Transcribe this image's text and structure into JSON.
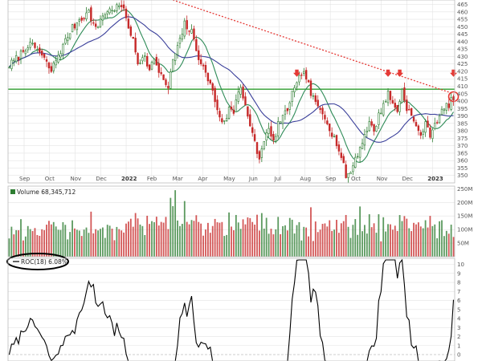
{
  "chart_data": [
    {
      "type": "candlestick",
      "panel": "price",
      "x_labels": [
        "Sep",
        "Oct",
        "Nov",
        "Dec",
        "2022",
        "Feb",
        "Mar",
        "Apr",
        "May",
        "Jun",
        "Jul",
        "Aug",
        "Sep",
        "Oct",
        "Nov",
        "Dec",
        "2023"
      ],
      "y_ticks": [
        350,
        355,
        360,
        365,
        370,
        375,
        380,
        385,
        390,
        395,
        400,
        405,
        410,
        415,
        420,
        425,
        430,
        435,
        440,
        445,
        450,
        455,
        460,
        465
      ],
      "ylim": [
        345,
        468
      ],
      "close_path": [
        [
          0,
          424
        ],
        [
          4,
          430
        ],
        [
          8,
          438
        ],
        [
          12,
          435
        ],
        [
          15,
          428
        ],
        [
          18,
          420
        ],
        [
          20,
          428
        ],
        [
          23,
          437
        ],
        [
          26,
          447
        ],
        [
          30,
          455
        ],
        [
          34,
          460
        ],
        [
          37,
          448
        ],
        [
          40,
          458
        ],
        [
          44,
          462
        ],
        [
          48,
          464
        ],
        [
          50,
          456
        ],
        [
          53,
          440
        ],
        [
          55,
          425
        ],
        [
          58,
          432
        ],
        [
          60,
          420
        ],
        [
          62,
          430
        ],
        [
          64,
          418
        ],
        [
          66,
          415
        ],
        [
          68,
          408
        ],
        [
          70,
          428
        ],
        [
          73,
          440
        ],
        [
          75,
          452
        ],
        [
          78,
          446
        ],
        [
          81,
          430
        ],
        [
          84,
          418
        ],
        [
          86,
          412
        ],
        [
          88,
          400
        ],
        [
          90,
          390
        ],
        [
          92,
          385
        ],
        [
          94,
          395
        ],
        [
          96,
          392
        ],
        [
          97,
          402
        ],
        [
          99,
          410
        ],
        [
          101,
          398
        ],
        [
          103,
          382
        ],
        [
          105,
          372
        ],
        [
          107,
          360
        ],
        [
          109,
          375
        ],
        [
          111,
          380
        ],
        [
          113,
          372
        ],
        [
          115,
          385
        ],
        [
          117,
          388
        ],
        [
          119,
          395
        ],
        [
          121,
          405
        ],
        [
          123,
          410
        ],
        [
          125,
          420
        ],
        [
          127,
          416
        ],
        [
          129,
          405
        ],
        [
          131,
          398
        ],
        [
          134,
          392
        ],
        [
          136,
          387
        ],
        [
          138,
          378
        ],
        [
          140,
          372
        ],
        [
          142,
          362
        ],
        [
          144,
          350
        ],
        [
          146,
          352
        ],
        [
          148,
          362
        ],
        [
          150,
          368
        ],
        [
          152,
          378
        ],
        [
          154,
          385
        ],
        [
          156,
          380
        ],
        [
          158,
          390
        ],
        [
          160,
          398
        ],
        [
          162,
          405
        ],
        [
          164,
          398
        ],
        [
          166,
          394
        ],
        [
          168,
          407
        ],
        [
          170,
          396
        ],
        [
          172,
          390
        ],
        [
          174,
          382
        ],
        [
          176,
          378
        ],
        [
          178,
          384
        ],
        [
          180,
          378
        ],
        [
          182,
          385
        ],
        [
          184,
          390
        ],
        [
          186,
          395
        ],
        [
          188,
          398
        ],
        [
          190,
          402
        ]
      ],
      "candles_up_color": "#2e7d32",
      "candles_down_color": "#c62828",
      "moving_averages": [
        {
          "color": "#2e8b57"
        },
        {
          "color": "#3a3f9a"
        }
      ],
      "horizontal_line": {
        "value": 408,
        "color": "#2e9e2e"
      },
      "resistance_line": {
        "from": [
          70,
          468
        ],
        "to": [
          190,
          405
        ],
        "color": "#e53935",
        "style": "dotted"
      },
      "resistance_markers": [
        {
          "x": 123,
          "value": 412,
          "color": "#e53935"
        },
        {
          "x": 162,
          "value": 412,
          "color": "#e53935"
        },
        {
          "x": 167,
          "value": 412,
          "color": "#e53935"
        },
        {
          "x": 190,
          "value": 412,
          "color": "#e53935"
        }
      ],
      "circle_marker": {
        "x": 190,
        "value": 403,
        "color": "#e53935"
      }
    },
    {
      "type": "bar",
      "panel": "volume",
      "legend": "Volume 68,345,712",
      "y_ticks": [
        "250M",
        "200M",
        "150M",
        "100M",
        "50M"
      ],
      "y_values": [
        250,
        200,
        150,
        100,
        50
      ],
      "ylim": [
        0,
        260
      ],
      "unit": "M"
    },
    {
      "type": "line",
      "panel": "roc",
      "legend": "ROC(18) 6.08%",
      "y_ticks": [
        10,
        9,
        8,
        7,
        6,
        5,
        4,
        3,
        2,
        1,
        0
      ],
      "ylim": [
        0,
        10.5
      ],
      "last_value": 6.08,
      "zero_line_color": "#999999"
    }
  ],
  "colors": {
    "up": "#2e7d32",
    "down": "#c62828",
    "grid": "#e3e3e3",
    "annotation": "#e53935",
    "hline": "#2e9e2e",
    "ma_fast": "#2e8b57",
    "ma_slow": "#3a3f9a"
  }
}
